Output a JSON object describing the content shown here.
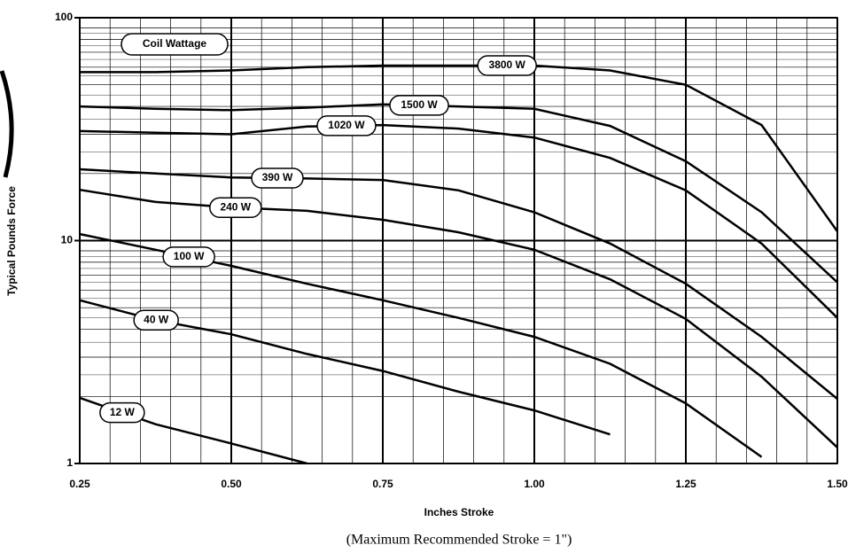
{
  "chart_data": {
    "type": "line",
    "x_label": "Inches Stroke",
    "y_label": "Typical Pounds Force",
    "note": "(Maximum Recommended Stroke = 1\")",
    "legend_title": "Coil Wattage",
    "x": [
      0.25,
      0.375,
      0.5,
      0.625,
      0.75,
      0.875,
      1.0,
      1.125,
      1.25,
      1.375,
      1.5
    ],
    "series": [
      {
        "name": "3800 W",
        "color": "#000000",
        "values": [
          57,
          57,
          58,
          60,
          61,
          61,
          61,
          58,
          50,
          33,
          11
        ]
      },
      {
        "name": "1500 W",
        "color": "#000000",
        "values": [
          40,
          39,
          38.5,
          39.5,
          40.9,
          40,
          39,
          32.7,
          22.7,
          13.4,
          6.5
        ]
      },
      {
        "name": "1020 W",
        "color": "#000000",
        "values": [
          31,
          30.5,
          30,
          32.5,
          33,
          31.8,
          29,
          23.5,
          16.8,
          9.7,
          4.5
        ]
      },
      {
        "name": "390 W",
        "color": "#000000",
        "values": [
          20.9,
          20,
          19.2,
          19,
          18.7,
          16.8,
          13.4,
          9.7,
          6.4,
          3.7,
          1.95
        ]
      },
      {
        "name": "240 W",
        "color": "#000000",
        "values": [
          16.9,
          14.9,
          14.1,
          13.6,
          12.4,
          10.9,
          9.1,
          6.7,
          4.45,
          2.45,
          1.18
        ]
      },
      {
        "name": "100 W",
        "color": "#000000",
        "values": [
          10.7,
          9.1,
          7.7,
          6.4,
          5.4,
          4.5,
          3.7,
          2.8,
          1.86,
          1.07,
          null
        ]
      },
      {
        "name": "40 W",
        "color": "#000000",
        "values": [
          5.4,
          4.4,
          3.8,
          3.1,
          2.6,
          2.1,
          1.73,
          1.35,
          null,
          null,
          null
        ]
      },
      {
        "name": "12 W",
        "color": "#000000",
        "values": [
          1.97,
          1.5,
          1.23,
          1.0,
          null,
          null,
          null,
          null,
          null,
          null,
          null
        ]
      }
    ],
    "xlim": [
      0.25,
      1.5
    ],
    "xticks": [
      0.25,
      {
        "value": 0.5,
        "label": "0.50"
      },
      0.75,
      {
        "value": 1.0,
        "label": "1.00"
      },
      1.25,
      {
        "value": 1.5,
        "label": "1.50"
      }
    ],
    "ylim": [
      1,
      100
    ],
    "yticks": [
      1,
      10,
      100
    ],
    "log_y": true,
    "grid": true
  }
}
